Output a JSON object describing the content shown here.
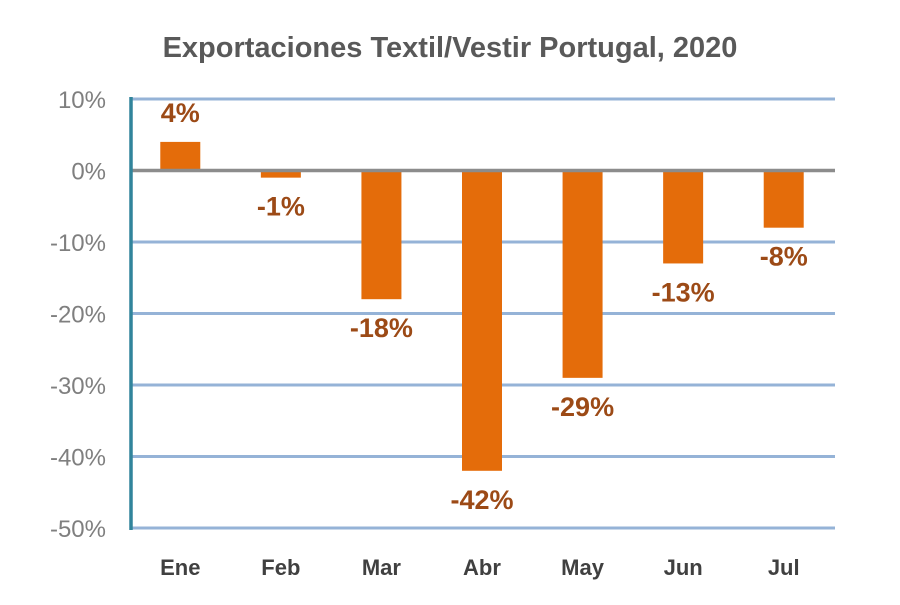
{
  "chart_data": {
    "type": "bar",
    "title": "Exportaciones Textil/Vestir Portugal, 2020",
    "categories": [
      "Ene",
      "Feb",
      "Mar",
      "Abr",
      "May",
      "Jun",
      "Jul"
    ],
    "values": [
      4,
      -1,
      -18,
      -42,
      -29,
      -13,
      -8
    ],
    "data_labels": [
      "4%",
      "-1%",
      "-18%",
      "-42%",
      "-29%",
      "-13%",
      "-8%"
    ],
    "xlabel": "",
    "ylabel": "",
    "ylim": [
      -50,
      10
    ],
    "yticks": [
      10,
      0,
      -10,
      -20,
      -30,
      -40,
      -50
    ],
    "ytick_labels": [
      "10%",
      "0%",
      "-10%",
      "-20%",
      "-30%",
      "-40%",
      "-50%"
    ],
    "grid": true,
    "legend": "none",
    "colors": {
      "bar": "#E46C0A",
      "label": "#9C4A16",
      "grid": "#95B3D7",
      "zero_line": "#8C8C8C",
      "axis": "#31849B",
      "title": "#595959",
      "ticks": "#7F7F7F"
    }
  }
}
